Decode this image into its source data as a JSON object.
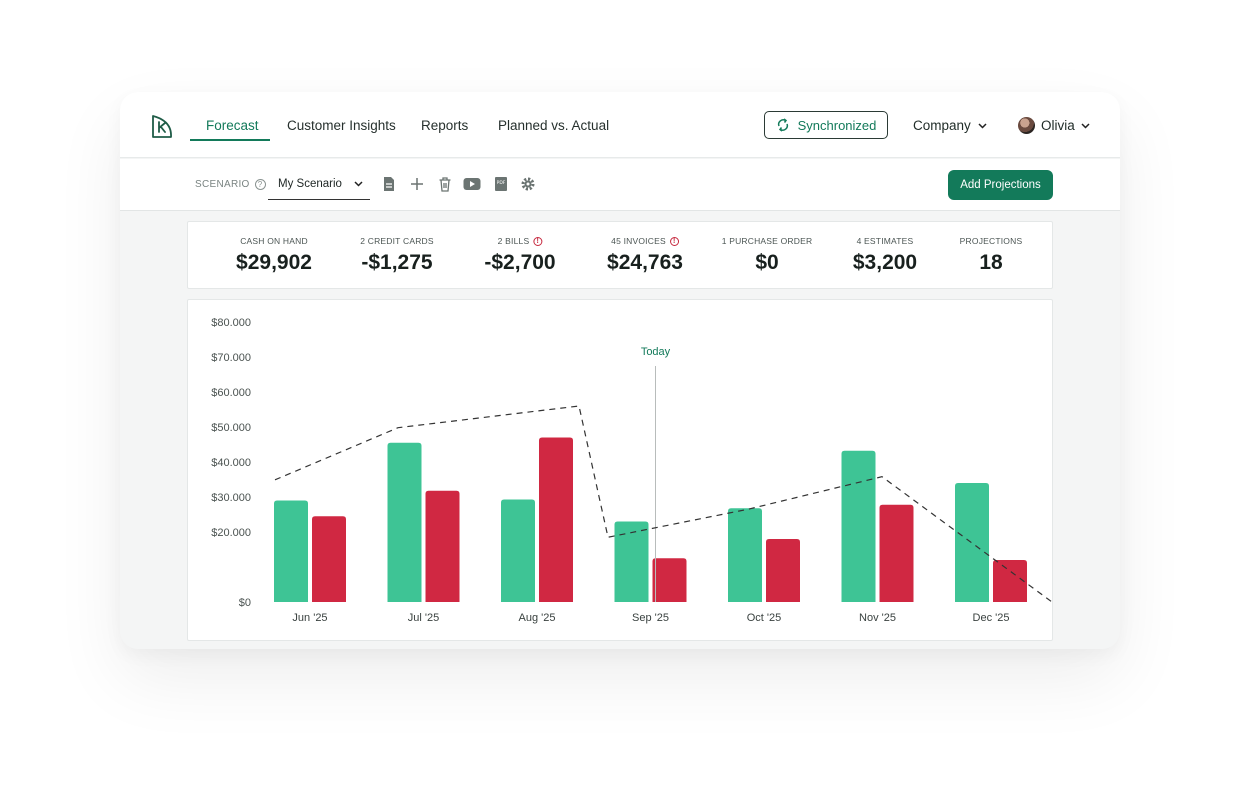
{
  "nav": {
    "tabs": [
      "Forecast",
      "Customer Insights",
      "Reports",
      "Planned vs. Actual"
    ],
    "active_tab": "Forecast",
    "sync_label": "Synchronized",
    "company_label": "Company",
    "user_name": "Olivia"
  },
  "toolbar": {
    "scenario_label": "SCENARIO",
    "scenario_value": "My Scenario",
    "icons": [
      "document-icon",
      "plus-icon",
      "trash-icon",
      "video-icon",
      "pdf-icon",
      "gear-icon"
    ],
    "add_projections_label": "Add Projections"
  },
  "stats": [
    {
      "label": "CASH ON HAND",
      "value": "$29,902",
      "warning": false
    },
    {
      "label": "2 CREDIT CARDS",
      "value": "-$1,275",
      "warning": false
    },
    {
      "label": "2 BILLS",
      "value": "-$2,700",
      "warning": true
    },
    {
      "label": "45 INVOICES",
      "value": "$24,763",
      "warning": true
    },
    {
      "label": "1 PURCHASE ORDER",
      "value": "$0",
      "warning": false
    },
    {
      "label": "4 ESTIMATES",
      "value": "$3,200",
      "warning": false
    },
    {
      "label": "PROJECTIONS",
      "value": "18",
      "warning": false
    }
  ],
  "colors": {
    "accent": "#137a5a",
    "inflow": "#3ec495",
    "outflow": "#d02842",
    "line": "#333333",
    "today_label": "#137a5a"
  },
  "chart_data": {
    "type": "bar",
    "categories": [
      "Jun '25",
      "Jul '25",
      "Aug '25",
      "Sep '25",
      "Oct '25",
      "Nov '25",
      "Dec '25"
    ],
    "series": [
      {
        "values": [
          29000,
          45500,
          29300,
          23000,
          26800,
          43200,
          34000
        ]
      },
      {
        "values": [
          24500,
          31800,
          47000,
          12500,
          18000,
          27800,
          12000
        ]
      }
    ],
    "line_series": {
      "values": [
        34900,
        49800,
        56000,
        18500,
        26500,
        35800,
        0
      ]
    },
    "today_marker": {
      "label": "Today",
      "position_category": "Sep '25"
    },
    "y_ticks": [
      "$0",
      "$20.000",
      "$30.000",
      "$40.000",
      "$50.000",
      "$60.000",
      "$70.000",
      "$80.000"
    ],
    "ylim": [
      0,
      80000
    ],
    "grid": false
  }
}
